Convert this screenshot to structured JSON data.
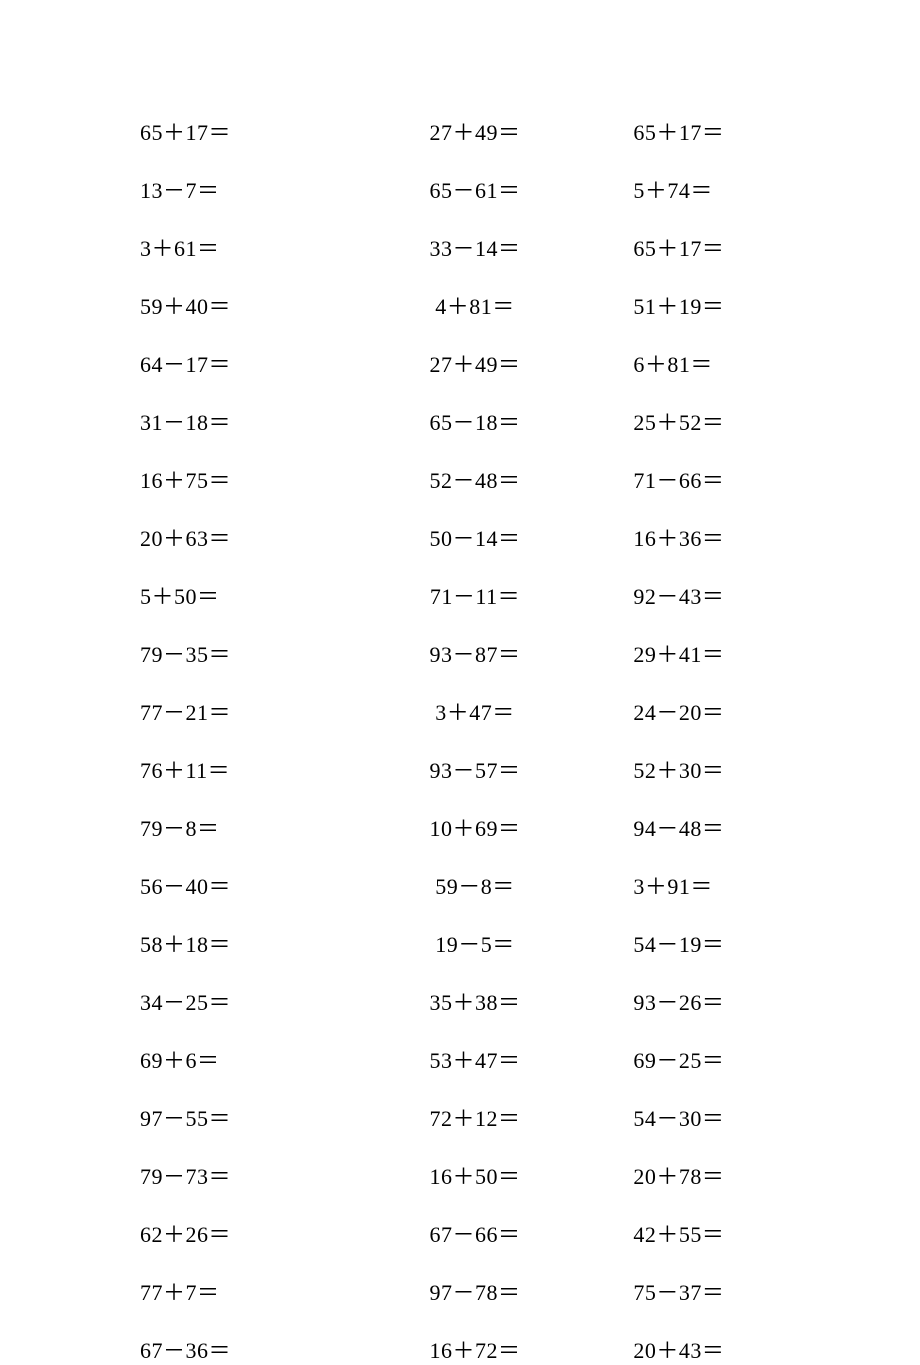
{
  "worksheet": {
    "font_size": 22,
    "text_color": "#000000",
    "background_color": "#ffffff",
    "rows": 22,
    "columns": 3,
    "problems": [
      {
        "a": 65,
        "op": "＋",
        "b": 17,
        "col": 1
      },
      {
        "a": 27,
        "op": "＋",
        "b": 49,
        "col": 2
      },
      {
        "a": 65,
        "op": "＋",
        "b": 17,
        "col": 3
      },
      {
        "a": 13,
        "op": "－",
        "b": 7,
        "col": 1
      },
      {
        "a": 65,
        "op": "－",
        "b": 61,
        "col": 2
      },
      {
        "a": 5,
        "op": "＋",
        "b": 74,
        "col": 3
      },
      {
        "a": 3,
        "op": "＋",
        "b": 61,
        "col": 1
      },
      {
        "a": 33,
        "op": "－",
        "b": 14,
        "col": 2
      },
      {
        "a": 65,
        "op": "＋",
        "b": 17,
        "col": 3
      },
      {
        "a": 59,
        "op": "＋",
        "b": 40,
        "col": 1
      },
      {
        "a": 4,
        "op": "＋",
        "b": 81,
        "col": 2
      },
      {
        "a": 51,
        "op": "＋",
        "b": 19,
        "col": 3
      },
      {
        "a": 64,
        "op": "－",
        "b": 17,
        "col": 1
      },
      {
        "a": 27,
        "op": "＋",
        "b": 49,
        "col": 2
      },
      {
        "a": 6,
        "op": "＋",
        "b": 81,
        "col": 3
      },
      {
        "a": 31,
        "op": "－",
        "b": 18,
        "col": 1
      },
      {
        "a": 65,
        "op": "－",
        "b": 18,
        "col": 2
      },
      {
        "a": 25,
        "op": "＋",
        "b": 52,
        "col": 3
      },
      {
        "a": 16,
        "op": "＋",
        "b": 75,
        "col": 1
      },
      {
        "a": 52,
        "op": "－",
        "b": 48,
        "col": 2
      },
      {
        "a": 71,
        "op": "－",
        "b": 66,
        "col": 3
      },
      {
        "a": 20,
        "op": "＋",
        "b": 63,
        "col": 1
      },
      {
        "a": 50,
        "op": "－",
        "b": 14,
        "col": 2
      },
      {
        "a": 16,
        "op": "＋",
        "b": 36,
        "col": 3
      },
      {
        "a": 5,
        "op": "＋",
        "b": 50,
        "col": 1
      },
      {
        "a": 71,
        "op": "－",
        "b": 11,
        "col": 2
      },
      {
        "a": 92,
        "op": "－",
        "b": 43,
        "col": 3
      },
      {
        "a": 79,
        "op": "－",
        "b": 35,
        "col": 1
      },
      {
        "a": 93,
        "op": "－",
        "b": 87,
        "col": 2
      },
      {
        "a": 29,
        "op": "＋",
        "b": 41,
        "col": 3
      },
      {
        "a": 77,
        "op": "－",
        "b": 21,
        "col": 1
      },
      {
        "a": 3,
        "op": "＋",
        "b": 47,
        "col": 2
      },
      {
        "a": 24,
        "op": "－",
        "b": 20,
        "col": 3
      },
      {
        "a": 76,
        "op": "＋",
        "b": 11,
        "col": 1
      },
      {
        "a": 93,
        "op": "－",
        "b": 57,
        "col": 2
      },
      {
        "a": 52,
        "op": "＋",
        "b": 30,
        "col": 3
      },
      {
        "a": 79,
        "op": "－",
        "b": 8,
        "col": 1
      },
      {
        "a": 10,
        "op": "＋",
        "b": 69,
        "col": 2
      },
      {
        "a": 94,
        "op": "－",
        "b": 48,
        "col": 3
      },
      {
        "a": 56,
        "op": "－",
        "b": 40,
        "col": 1
      },
      {
        "a": 59,
        "op": "－",
        "b": 8,
        "col": 2
      },
      {
        "a": 3,
        "op": "＋",
        "b": 91,
        "col": 3
      },
      {
        "a": 58,
        "op": "＋",
        "b": 18,
        "col": 1
      },
      {
        "a": 19,
        "op": "－",
        "b": 5,
        "col": 2
      },
      {
        "a": 54,
        "op": "－",
        "b": 19,
        "col": 3
      },
      {
        "a": 34,
        "op": "－",
        "b": 25,
        "col": 1
      },
      {
        "a": 35,
        "op": "＋",
        "b": 38,
        "col": 2
      },
      {
        "a": 93,
        "op": "－",
        "b": 26,
        "col": 3
      },
      {
        "a": 69,
        "op": "＋",
        "b": 6,
        "col": 1
      },
      {
        "a": 53,
        "op": "＋",
        "b": 47,
        "col": 2
      },
      {
        "a": 69,
        "op": "－",
        "b": 25,
        "col": 3
      },
      {
        "a": 97,
        "op": "－",
        "b": 55,
        "col": 1
      },
      {
        "a": 72,
        "op": "＋",
        "b": 12,
        "col": 2
      },
      {
        "a": 54,
        "op": "－",
        "b": 30,
        "col": 3
      },
      {
        "a": 79,
        "op": "－",
        "b": 73,
        "col": 1
      },
      {
        "a": 16,
        "op": "＋",
        "b": 50,
        "col": 2
      },
      {
        "a": 20,
        "op": "＋",
        "b": 78,
        "col": 3
      },
      {
        "a": 62,
        "op": "＋",
        "b": 26,
        "col": 1
      },
      {
        "a": 67,
        "op": "－",
        "b": 66,
        "col": 2
      },
      {
        "a": 42,
        "op": "＋",
        "b": 55,
        "col": 3
      },
      {
        "a": 77,
        "op": "＋",
        "b": 7,
        "col": 1
      },
      {
        "a": 97,
        "op": "－",
        "b": 78,
        "col": 2
      },
      {
        "a": 75,
        "op": "－",
        "b": 37,
        "col": 3
      },
      {
        "a": 67,
        "op": "－",
        "b": 36,
        "col": 1
      },
      {
        "a": 16,
        "op": "＋",
        "b": 72,
        "col": 2
      },
      {
        "a": 20,
        "op": "＋",
        "b": 43,
        "col": 3
      }
    ],
    "equals_sign": "＝"
  }
}
